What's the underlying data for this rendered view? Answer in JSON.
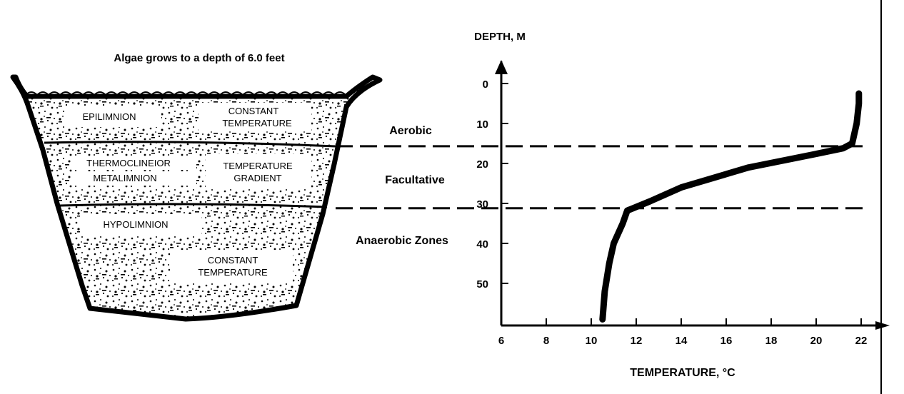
{
  "diagram": {
    "caption": "Algae grows to a depth of 6.0 feet",
    "layers": {
      "epilimnion": "EPILIMNION",
      "constant_top_line1": "CONSTANT",
      "constant_top_line2": "TEMPERATURE",
      "thermocline_line1": "THERMOCLINEIOR",
      "thermocline_line2": "METALIMNION",
      "gradient_line1": "TEMPERATURE",
      "gradient_line2": "GRADIENT",
      "hypolimnion": "HYPOLIMNION",
      "constant_bottom_line1": "CONSTANT",
      "constant_bottom_line2": "TEMPERATURE"
    },
    "zones": {
      "aerobic": "Aerobic",
      "facultative": "Facultative",
      "anaerobic": "Anaerobic Zones"
    }
  },
  "chart_data": {
    "type": "line",
    "title": "",
    "xlabel": "TEMPERATURE, °C",
    "ylabel": "DEPTH, M",
    "xlim": [
      6,
      22
    ],
    "ylim": [
      0,
      60
    ],
    "y_inverted": true,
    "x_ticks": [
      6,
      8,
      10,
      12,
      14,
      16,
      18,
      20,
      22
    ],
    "y_ticks": [
      0,
      10,
      20,
      30,
      40,
      50
    ],
    "series": [
      {
        "x": [
          21.9,
          21.9,
          21.8,
          21.6,
          21.2,
          20,
          17,
          14,
          12.6,
          11.6,
          11.4,
          11.0,
          10.8,
          10.6,
          10.5
        ],
        "y": [
          2.5,
          5,
          10,
          15,
          16.2,
          17.6,
          21,
          26,
          29.5,
          31.8,
          35,
          40,
          45,
          52,
          59
        ]
      }
    ],
    "reference_lines": [
      {
        "depth": 15.7
      },
      {
        "depth": 31.2
      }
    ]
  }
}
